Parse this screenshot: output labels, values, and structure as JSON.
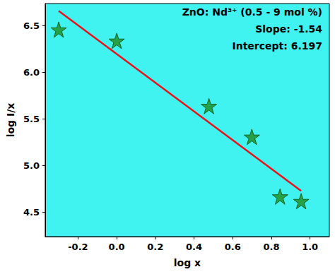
{
  "chart_data": {
    "type": "scatter",
    "x_label": "log x",
    "y_label": "log I/x",
    "annotations": [
      "ZnO: Nd³⁺ (0.5 - 9 mol %)",
      "Slope: -1.54",
      "Intercept: 6.197"
    ],
    "series": [
      {
        "type": "scatter",
        "marker": "star",
        "color": "#1e8c1e",
        "x": [
          -0.3,
          0.0,
          0.477,
          0.699,
          0.845,
          0.954
        ],
        "values": [
          6.46,
          6.34,
          5.64,
          5.31,
          4.67,
          4.62
        ]
      },
      {
        "type": "line",
        "line_style": "solid",
        "color": "#e8141c",
        "x": [
          -0.3,
          0.954
        ],
        "values": [
          6.66,
          4.73
        ]
      }
    ],
    "xlim": [
      -0.37,
      1.1
    ],
    "xticks": [
      {
        "value": -0.2,
        "label": "-0.2"
      },
      {
        "value": 0,
        "label": "0.0"
      },
      {
        "value": 0.2,
        "label": "0.2"
      },
      {
        "value": 0.4,
        "label": "0.4"
      },
      {
        "value": 0.6,
        "label": "0.6"
      },
      {
        "value": 0.8,
        "label": "0.8"
      },
      {
        "value": 1,
        "label": "1.0"
      }
    ],
    "ylim": [
      4.24,
      6.74
    ],
    "yticks": [
      {
        "value": 4.5,
        "label": "4.5"
      },
      {
        "value": 5,
        "label": "5.0"
      },
      {
        "value": 5.5,
        "label": "5.5"
      },
      {
        "value": 6,
        "label": "6.0"
      },
      {
        "value": 6.5,
        "label": "6.5"
      }
    ],
    "grid": false
  }
}
